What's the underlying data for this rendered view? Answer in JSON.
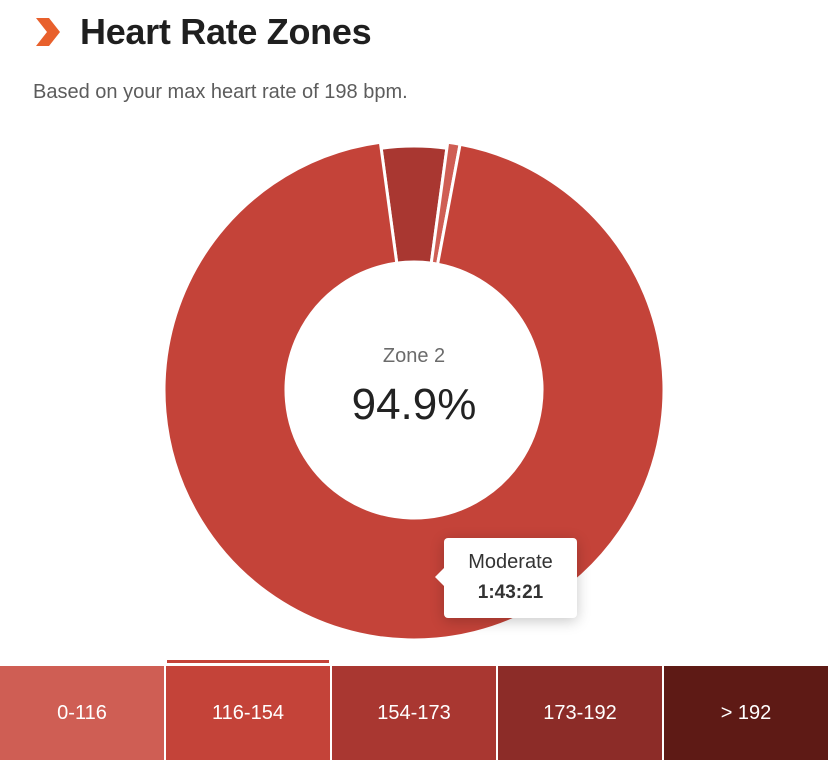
{
  "header": {
    "title": "Heart Rate Zones",
    "subtitle": "Based on your max heart rate of 198 bpm."
  },
  "center": {
    "zone_label": "Zone 2",
    "percent_label": "94.9%"
  },
  "tooltip": {
    "label": "Moderate",
    "value": "1:43:21"
  },
  "colors": {
    "accent": "#e8602c",
    "zone1": "#cf5e54",
    "zone2": "#c44339",
    "zone3": "#a93731",
    "zone4": "#8c2c28",
    "zone5": "#5e1a15"
  },
  "chart_data": {
    "type": "pie",
    "donut": true,
    "selected_index": 1,
    "slices": [
      {
        "value": 4.3,
        "color": "#a93731"
      },
      {
        "value": 0.8,
        "color": "#cf5e54"
      },
      {
        "value": 94.9,
        "color": "#c44339"
      }
    ]
  },
  "zones": [
    {
      "label": "0-116",
      "color": "#cf5e54"
    },
    {
      "label": "116-154",
      "color": "#c44339"
    },
    {
      "label": "154-173",
      "color": "#a93731"
    },
    {
      "label": "173-192",
      "color": "#8c2c28"
    },
    {
      "label": "> 192",
      "color": "#5e1a15"
    }
  ]
}
